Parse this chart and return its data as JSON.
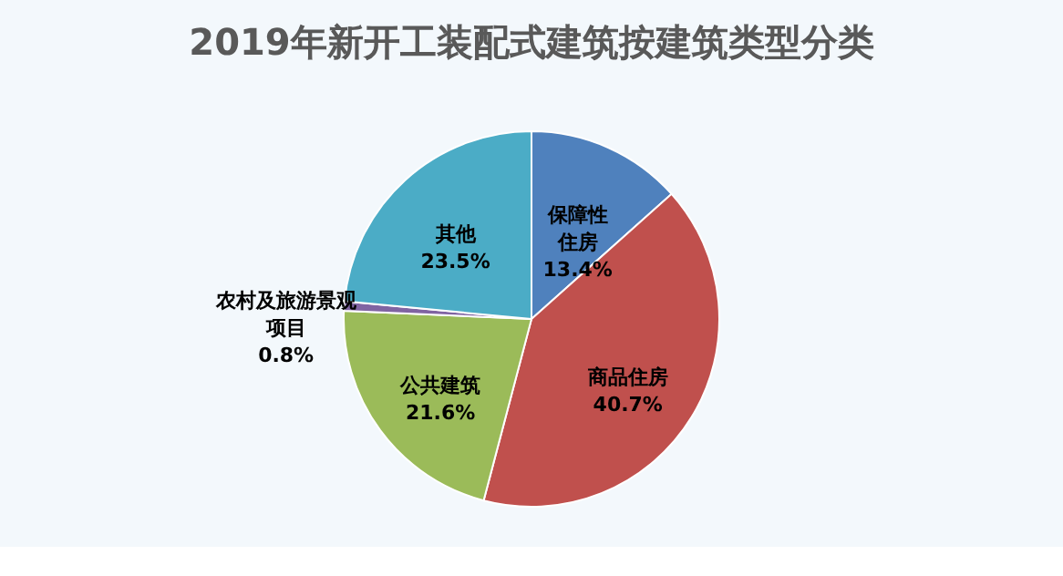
{
  "chart_data": {
    "type": "pie",
    "title": "2019年新开工装配式建筑按建筑类型分类",
    "categories": [
      "保障性住房",
      "商品住房",
      "公共建筑",
      "农村及旅游景观项目",
      "其他"
    ],
    "values": [
      13.4,
      40.7,
      21.6,
      0.8,
      23.5
    ],
    "colors": [
      "#4f81bd",
      "#c0504d",
      "#9bbb59",
      "#8064a2",
      "#4bacc6"
    ],
    "value_labels": [
      "13.4%",
      "40.7%",
      "21.6%",
      "0.8%",
      "23.5%"
    ],
    "legend": false
  }
}
